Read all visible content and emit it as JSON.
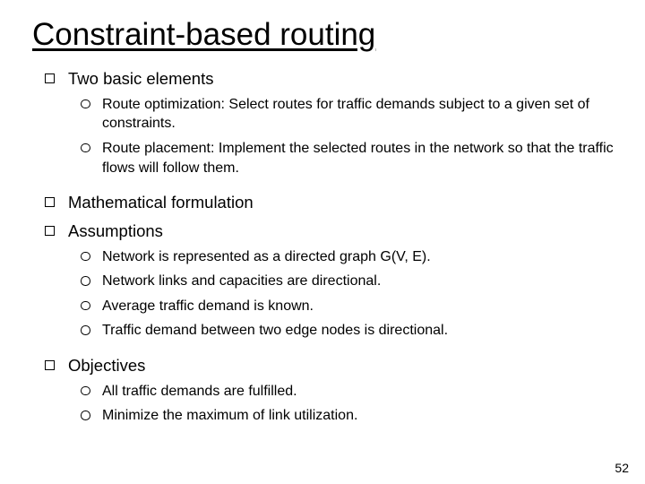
{
  "title": "Constraint-based routing",
  "pageNumber": "52",
  "colors": {
    "background": "#ffffff",
    "text": "#000000",
    "bulletBorder": "#000000"
  },
  "typography": {
    "fontFamily": "Comic Sans MS",
    "titleSize": 35,
    "level1Size": 18.5,
    "level2Size": 16
  },
  "bullets": {
    "level1": {
      "shape": "square-outline",
      "size": 11
    },
    "level2": {
      "shape": "circle-outline",
      "size": 10.5
    }
  },
  "items": [
    {
      "text": "Two basic elements",
      "sub": [
        "Route optimization: Select routes for traffic demands subject to a given set of constraints.",
        "Route placement: Implement the selected routes in the network so that the traffic flows will follow them."
      ]
    },
    {
      "text": "Mathematical formulation",
      "sub": []
    },
    {
      "text": "Assumptions",
      "sub": [
        "Network is represented as a directed graph G(V, E).",
        " Network links and capacities are directional.",
        "Average traffic demand is known.",
        "Traffic demand between two edge nodes is directional."
      ]
    },
    {
      "text": "Objectives",
      "sub": [
        "All traffic demands are fulfilled.",
        "Minimize the maximum of link utilization."
      ]
    }
  ]
}
